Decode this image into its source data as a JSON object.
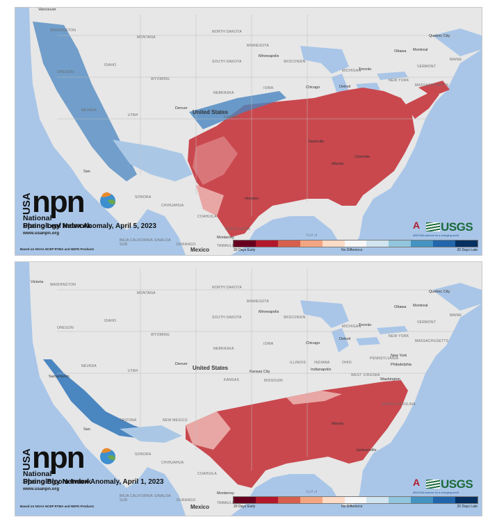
{
  "colors": {
    "ocean": "#a9c6e8",
    "land": "#e7e7e7",
    "early_strong": "#c9484e",
    "early_mid": "#d9767a",
    "late": "#4a86c0",
    "late_light": "#aac8e6",
    "usgs_green": "#1b6a3a",
    "arizona_red": "#b01c2e"
  },
  "legend_colors": [
    "#67001f",
    "#b2182b",
    "#d6604d",
    "#f4a582",
    "#fddbc7",
    "#f7f7f7",
    "#d1e5f0",
    "#92c5de",
    "#4393c3",
    "#2166ac",
    "#053061"
  ],
  "maps": [
    {
      "title": "Spring Leaf Index Anomaly, April 5, 2023",
      "logo_usa": "USA",
      "logo_npn": "npn",
      "logo_name_1": "National",
      "logo_name_2": "Phenology Network",
      "url": "www.usanpn.org",
      "source": "Based on NOAA NCEP RTMA and NDFD Products",
      "legend_left": "20 Days Early",
      "legend_mid": "No Difference",
      "legend_right": "20 Days Late",
      "usgs": "USGS",
      "arizona": "A",
      "arizona_sub": "ARIZONA science for a changing world",
      "country_us": "United States",
      "country_mx": "Mexico",
      "places": [
        "WASHINGTON",
        "MONTANA",
        "NORTH DAKOTA",
        "MINNESOTA",
        "OREGON",
        "IDAHO",
        "WYOMING",
        "SOUTH DAKOTA",
        "WISCONSIN",
        "MICHIGAN",
        "NEBRASKA",
        "IOWA",
        "NEVADA",
        "UTAH",
        "KANSAS",
        "SONORA",
        "CHIHUAHUA",
        "COAHUILA",
        "NUEVO LEÓN",
        "BAJA CALIFORNIA SUR",
        "SINALOA",
        "DURANGO",
        "TAMAULIPAS",
        "MAINE",
        "VERMONT",
        "NEW YORK",
        "MASSACHUSETTS"
      ],
      "cities": [
        "Vancouver",
        "Minneapolis",
        "Toronto",
        "Chicago",
        "Detroit",
        "Ottawa",
        "Montreal",
        "Quebec City",
        "Denver",
        "Nashville",
        "Charlotte",
        "Atlanta",
        "Houston",
        "Monterrey",
        "San",
        "Gulf of"
      ]
    },
    {
      "title": "Spring Bloom Index Anomaly, April 1, 2023",
      "logo_usa": "USA",
      "logo_npn": "npn",
      "logo_name_1": "National",
      "logo_name_2": "Phenology Network",
      "url": "www.usanpn.org",
      "source": "Based on NOAA NCEP RTMA and NDFD Products",
      "legend_left": "20 Days Early",
      "legend_mid": "No Difference",
      "legend_right": "20 Days Late",
      "usgs": "USGS",
      "arizona": "A",
      "arizona_sub": "ARIZONA science for a changing world",
      "country_us": "United States",
      "country_mx": "Mexico",
      "places": [
        "WASHINGTON",
        "MONTANA",
        "NORTH DAKOTA",
        "MINNESOTA",
        "OREGON",
        "IDAHO",
        "WYOMING",
        "SOUTH DAKOTA",
        "WISCONSIN",
        "MICHIGAN",
        "NEBRASKA",
        "IOWA",
        "NEVADA",
        "UTAH",
        "KANSAS",
        "MISSOURI",
        "ILLINOIS",
        "INDIANA",
        "OHIO",
        "PENNSYLVANIA",
        "WEST VIRGINIA",
        "NORTH CAROLINA",
        "NEW MEXICO",
        "ARIZONA",
        "SONORA",
        "CHIHUAHUA",
        "COAHUILA",
        "BAJA CALIFORNIA SUR",
        "SINALOA",
        "DURANGO",
        "TAMAULIPAS",
        "MAINE",
        "VERMONT",
        "NEW YORK",
        "MASSACHUSETTS"
      ],
      "cities": [
        "Victoria",
        "Minneapolis",
        "Toronto",
        "Chicago",
        "Detroit",
        "Ottawa",
        "Montreal",
        "Quebec City",
        "Denver",
        "Kansas City",
        "Indianapolis",
        "New York",
        "Philadelphia",
        "Washington",
        "Atlanta",
        "Jacksonville",
        "Monterrey",
        "Sacramento",
        "San",
        "Gulf of"
      ]
    }
  ]
}
